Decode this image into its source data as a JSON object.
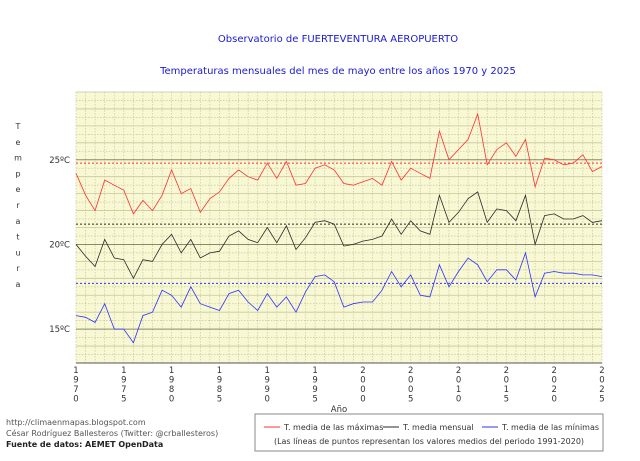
{
  "chart_data": {
    "type": "line",
    "title": "Observatorio de FUERTEVENTURA AEROPUERTO",
    "subtitle": "Temperaturas mensuales del mes de mayo entre los años 1970 y 2025",
    "xlabel": "Año",
    "ylabel": "Temperatura",
    "xlim": [
      1970,
      2025
    ],
    "ylim": [
      13,
      29
    ],
    "x_ticks": [
      "1970",
      "1975",
      "1980",
      "1985",
      "1990",
      "1995",
      "2000",
      "2005",
      "2010",
      "2015",
      "2020",
      "2025"
    ],
    "y_ticks": [
      "15ºC",
      "20ºC",
      "25ºC"
    ],
    "y_tick_values": [
      15,
      20,
      25
    ],
    "grid": true,
    "legend_position": "bottom",
    "x": [
      1970,
      1971,
      1972,
      1973,
      1974,
      1975,
      1976,
      1977,
      1978,
      1979,
      1980,
      1981,
      1982,
      1983,
      1984,
      1985,
      1986,
      1987,
      1988,
      1989,
      1990,
      1991,
      1992,
      1993,
      1994,
      1995,
      1996,
      1997,
      1998,
      1999,
      2000,
      2001,
      2002,
      2003,
      2004,
      2005,
      2006,
      2007,
      2008,
      2009,
      2010,
      2011,
      2012,
      2013,
      2014,
      2015,
      2016,
      2017,
      2018,
      2019,
      2020,
      2021,
      2022,
      2023,
      2024,
      2025
    ],
    "series": [
      {
        "name": "T. media de las máximas",
        "color": "#ff3030",
        "values": [
          24.2,
          22.9,
          22.0,
          23.8,
          23.5,
          23.2,
          21.8,
          22.6,
          22.0,
          22.9,
          24.4,
          23.0,
          23.3,
          21.9,
          22.7,
          23.1,
          23.9,
          24.4,
          24.0,
          23.8,
          24.8,
          23.9,
          24.9,
          23.5,
          23.6,
          24.5,
          24.7,
          24.4,
          23.6,
          23.5,
          23.7,
          23.9,
          23.5,
          24.9,
          23.8,
          24.5,
          24.2,
          23.9,
          26.7,
          25.0,
          25.6,
          26.2,
          27.7,
          24.7,
          25.6,
          26.0,
          25.2,
          26.2,
          23.4,
          25.1,
          25.0,
          24.7,
          24.8,
          25.3,
          24.3,
          24.6
        ]
      },
      {
        "name": "T. media mensual",
        "color": "#2a2a2a",
        "values": [
          20.0,
          19.3,
          18.7,
          20.3,
          19.2,
          19.1,
          18.0,
          19.1,
          19.0,
          20.0,
          20.6,
          19.5,
          20.3,
          19.2,
          19.5,
          19.6,
          20.5,
          20.8,
          20.3,
          20.1,
          21.0,
          20.1,
          21.1,
          19.7,
          20.4,
          21.3,
          21.4,
          21.2,
          19.9,
          20.0,
          20.2,
          20.3,
          20.5,
          21.5,
          20.6,
          21.4,
          20.8,
          20.6,
          22.9,
          21.3,
          21.9,
          22.7,
          23.1,
          21.3,
          22.1,
          22.0,
          21.4,
          22.9,
          20.0,
          21.7,
          21.8,
          21.5,
          21.5,
          21.7,
          21.3,
          21.4
        ]
      },
      {
        "name": "T. media de las mínimas",
        "color": "#3030ff",
        "values": [
          15.8,
          15.7,
          15.4,
          16.5,
          15.0,
          15.0,
          14.2,
          15.8,
          16.0,
          17.3,
          17.0,
          16.3,
          17.5,
          16.5,
          16.3,
          16.1,
          17.1,
          17.3,
          16.6,
          16.1,
          17.1,
          16.3,
          16.9,
          16.0,
          17.2,
          18.1,
          18.2,
          17.8,
          16.3,
          16.5,
          16.6,
          16.6,
          17.3,
          18.4,
          17.5,
          18.2,
          17.0,
          16.9,
          18.8,
          17.5,
          18.4,
          19.2,
          18.8,
          17.8,
          18.5,
          18.5,
          17.9,
          19.5,
          16.9,
          18.3,
          18.4,
          18.3,
          18.3,
          18.2,
          18.2,
          18.1
        ]
      }
    ],
    "reference_lines": [
      {
        "series": "T. media de las máximas",
        "value": 24.8
      },
      {
        "series": "T. media mensual",
        "value": 21.2
      },
      {
        "series": "T. media de las mínimas",
        "value": 17.7
      }
    ],
    "legend_note": "(Las líneas de puntos representan los valores medios del periodo 1991-2020)",
    "colors": {
      "plot_background": "#f8f8d4",
      "grid_major": "#8a8a6a",
      "grid_minor": "#c8c89a",
      "title": "#1a1ad0"
    }
  },
  "credits": {
    "blog": "http://climaenmapas.blogspot.com",
    "author": "César Rodríguez Ballesteros (Twitter: @crballesteros)",
    "source": "Fuente de datos: AEMET OpenData"
  }
}
